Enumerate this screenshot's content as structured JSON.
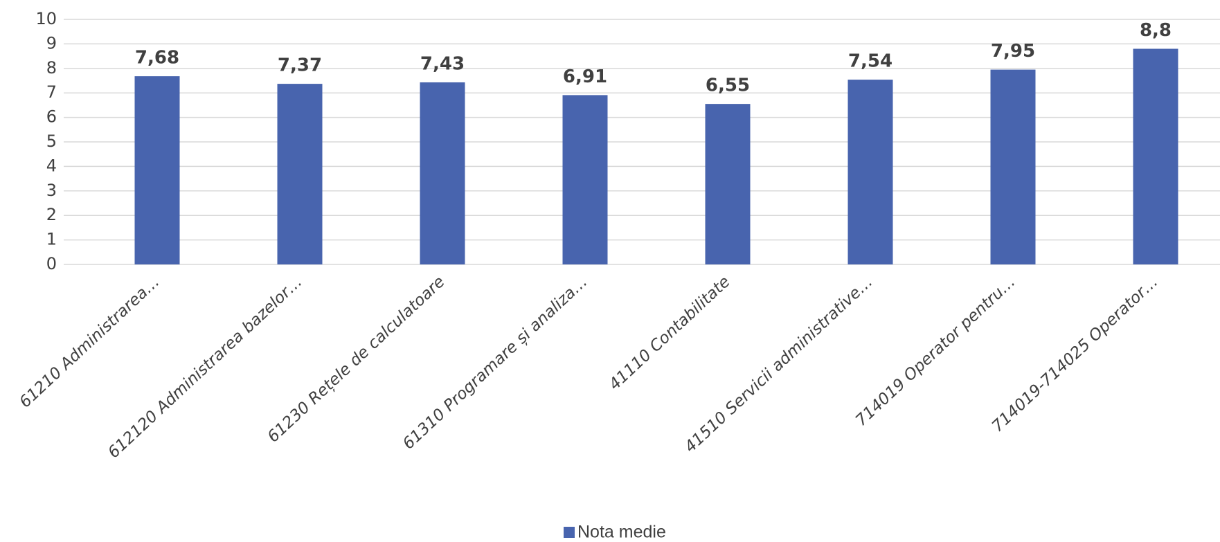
{
  "chart_data": {
    "type": "bar",
    "categories": [
      "61210 Administrarea…",
      "612120 Administrarea bazelor…",
      "61230 Rețele de calculatoare",
      "61310 Programare și analiza…",
      "41110 Contabilitate",
      "41510 Servicii administrative…",
      "714019 Operator pentru…",
      "714019-714025 Operator…"
    ],
    "series": [
      {
        "name": "Nota medie",
        "color": "#4864ae",
        "values": [
          7.68,
          7.37,
          7.43,
          6.91,
          6.55,
          7.54,
          7.95,
          8.8
        ],
        "value_labels": [
          "7,68",
          "7,37",
          "7,43",
          "6,91",
          "6,55",
          "7,54",
          "7,95",
          "8,8"
        ]
      }
    ],
    "ylim": [
      0,
      10
    ],
    "yticks": [
      0,
      1,
      2,
      3,
      4,
      5,
      6,
      7,
      8,
      9,
      10
    ],
    "grid": true,
    "legend": "bottom"
  }
}
